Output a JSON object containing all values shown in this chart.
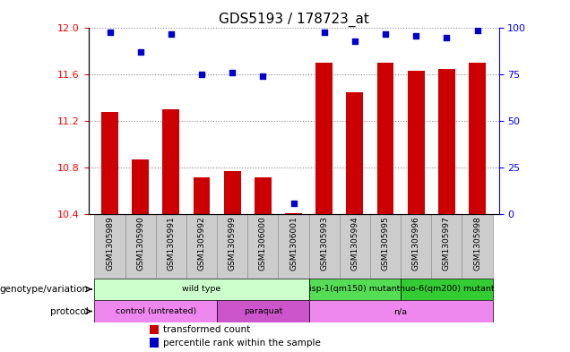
{
  "title": "GDS5193 / 178723_at",
  "samples": [
    "GSM1305989",
    "GSM1305990",
    "GSM1305991",
    "GSM1305992",
    "GSM1305999",
    "GSM1306000",
    "GSM1306001",
    "GSM1305993",
    "GSM1305994",
    "GSM1305995",
    "GSM1305996",
    "GSM1305997",
    "GSM1305998"
  ],
  "transformed_count": [
    11.28,
    10.87,
    11.3,
    10.72,
    10.77,
    10.72,
    10.41,
    11.7,
    11.45,
    11.7,
    11.63,
    11.65,
    11.7
  ],
  "percentile_rank": [
    98,
    87,
    97,
    75,
    76,
    74,
    6,
    98,
    93,
    97,
    96,
    95,
    99
  ],
  "ylim_left": [
    10.4,
    12.0
  ],
  "ylim_right": [
    0,
    100
  ],
  "yticks_left": [
    10.4,
    10.8,
    11.2,
    11.6,
    12.0
  ],
  "yticks_right": [
    0,
    25,
    50,
    75,
    100
  ],
  "bar_color": "#cc0000",
  "dot_color": "#0000cc",
  "genotype_groups": [
    {
      "label": "wild type",
      "start": 0,
      "end": 6,
      "color": "#ccffcc"
    },
    {
      "label": "isp-1(qm150) mutant",
      "start": 7,
      "end": 9,
      "color": "#55dd55"
    },
    {
      "label": "nuo-6(qm200) mutant",
      "start": 10,
      "end": 12,
      "color": "#33cc33"
    }
  ],
  "protocol_groups": [
    {
      "label": "control (untreated)",
      "start": 0,
      "end": 3,
      "color": "#ee88ee"
    },
    {
      "label": "paraquat",
      "start": 4,
      "end": 6,
      "color": "#cc55cc"
    },
    {
      "label": "n/a",
      "start": 7,
      "end": 12,
      "color": "#ee88ee"
    }
  ],
  "legend_items": [
    {
      "label": "transformed count",
      "color": "#cc0000"
    },
    {
      "label": "percentile rank within the sample",
      "color": "#0000cc"
    }
  ],
  "tick_label_bg": "#cccccc",
  "grid_color": "#888888",
  "figure_bg": "#ffffff"
}
